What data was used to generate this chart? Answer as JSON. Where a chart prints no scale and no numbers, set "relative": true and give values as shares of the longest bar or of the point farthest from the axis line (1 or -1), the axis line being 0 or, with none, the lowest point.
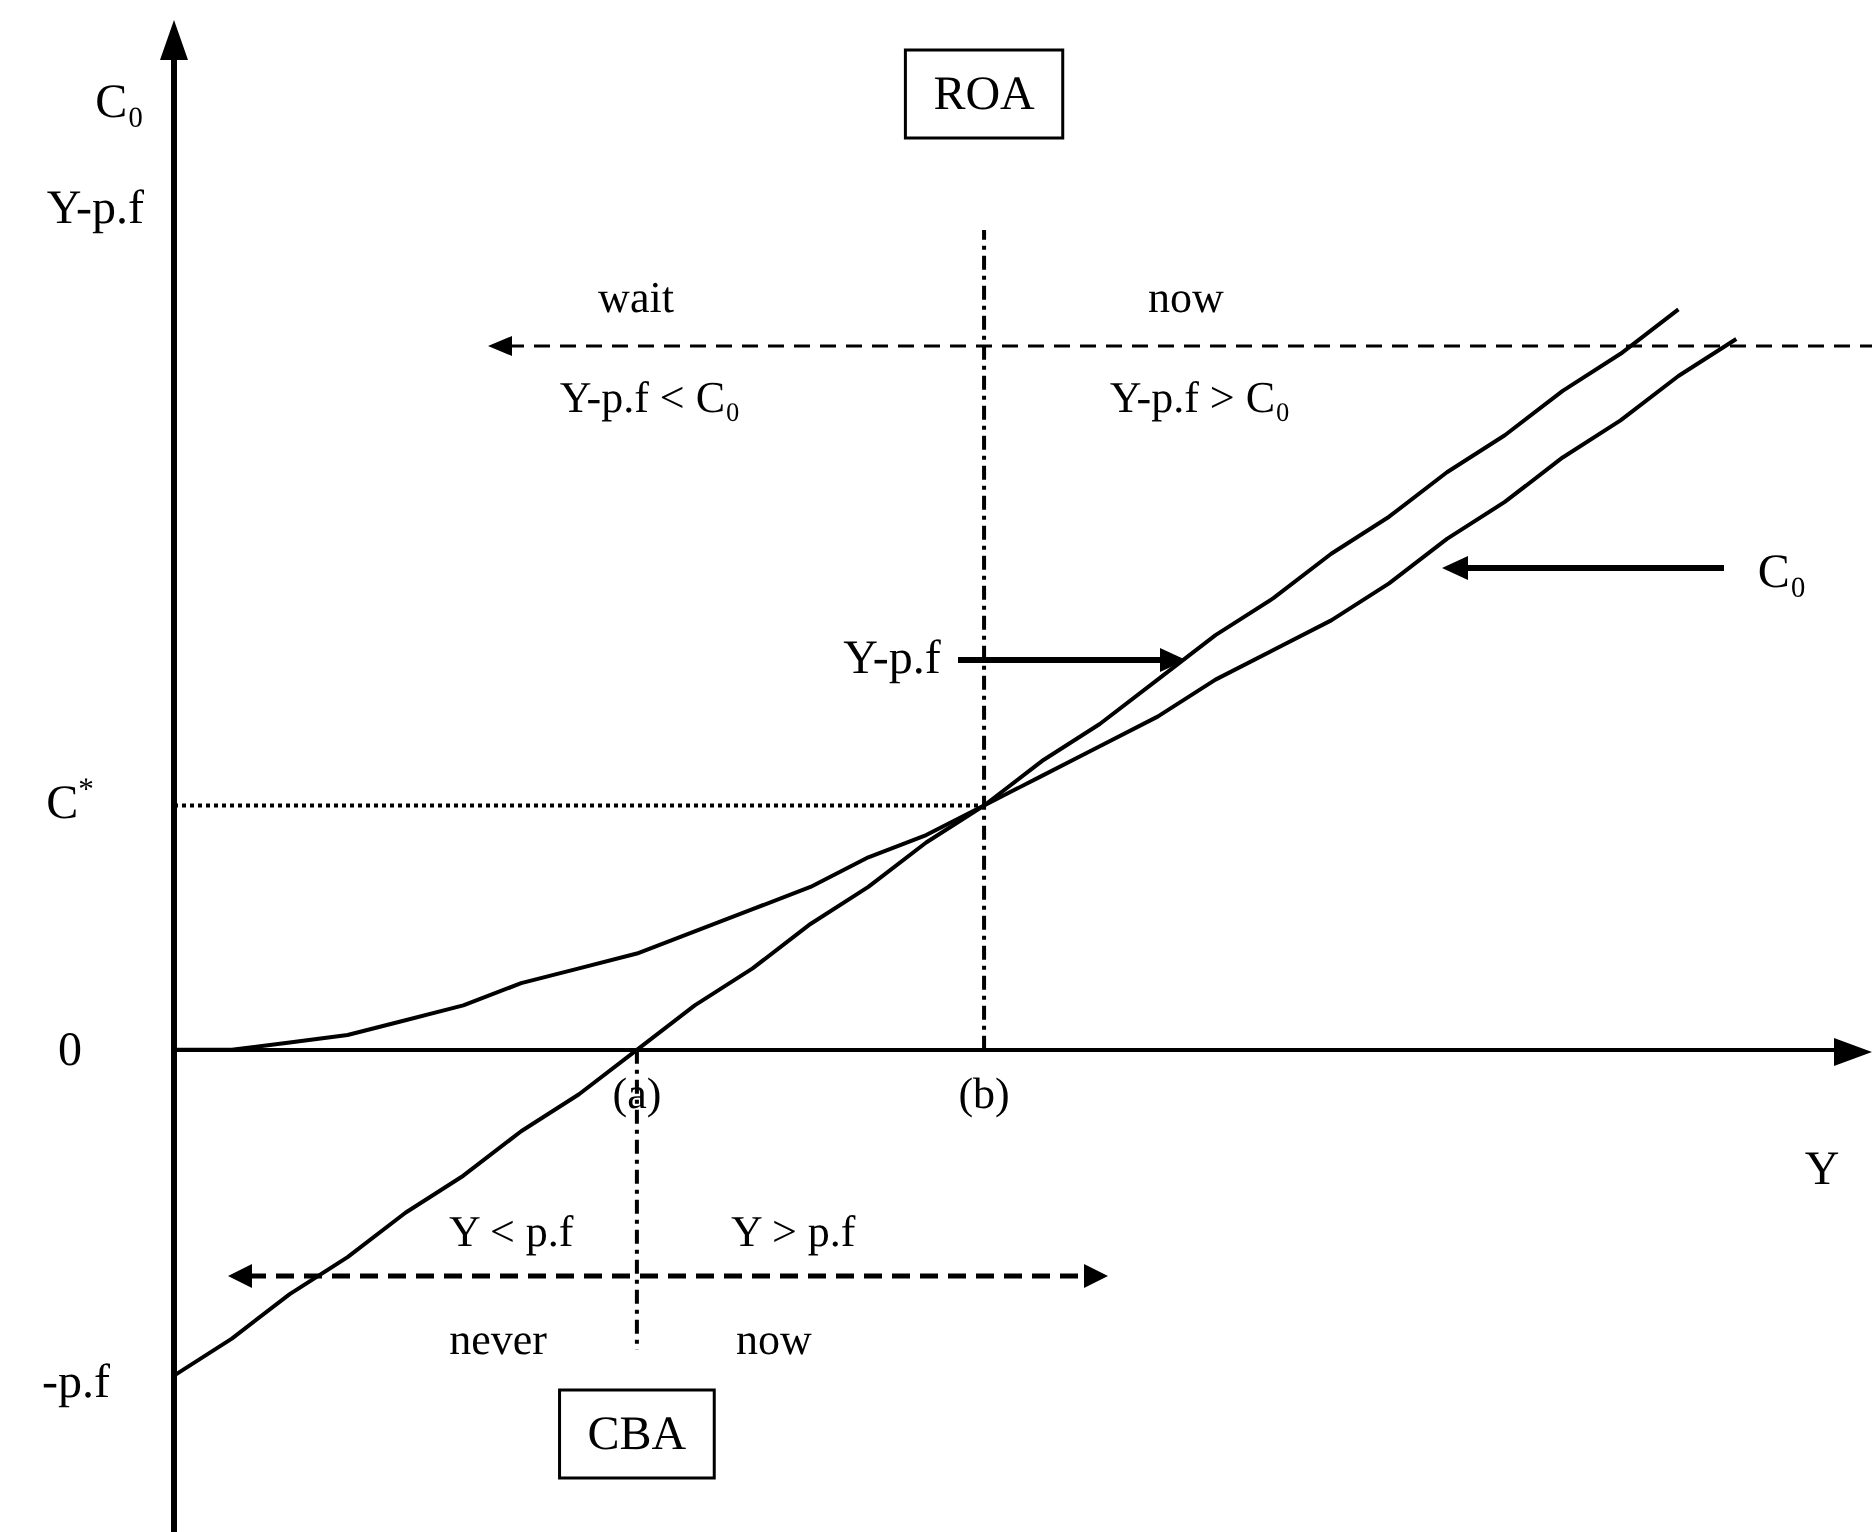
{
  "chart_data": {
    "type": "line",
    "relative": true,
    "ylabel": "C₀\nY-p.f",
    "xlabel": "Y",
    "categories": [
      null,
      null,
      null,
      null,
      null,
      null,
      null,
      null,
      "(a)",
      null,
      null,
      null,
      null,
      null,
      "(b)",
      null,
      null,
      null,
      null,
      null,
      null,
      null,
      null,
      null,
      null,
      null,
      null,
      null,
      null,
      null
    ],
    "series": [
      {
        "color": "#000000",
        "values": [
          -0.44,
          -0.39,
          -0.33,
          -0.28,
          -0.22,
          -0.17,
          -0.11,
          -0.06,
          0,
          0.06,
          0.11,
          0.17,
          0.22,
          0.28,
          0.33,
          0.39,
          0.44,
          0.5,
          0.56,
          0.61,
          0.67,
          0.72,
          0.78,
          0.83,
          0.89,
          0.94,
          1,
          null,
          null,
          null
        ]
      },
      {
        "color": "#000000",
        "values": [
          0,
          0,
          0.01,
          0.02,
          0.04,
          0.06,
          0.09,
          0.11,
          0.13,
          0.16,
          0.19,
          0.22,
          0.26,
          0.29,
          0.33,
          0.37,
          0.41,
          0.45,
          0.5,
          0.54,
          0.58,
          0.63,
          0.69,
          0.74,
          0.8,
          0.85,
          0.91,
          0.96,
          null,
          null
        ]
      }
    ],
    "ref_lines": [
      {
        "axis": "y",
        "value": 0.33,
        "label": "C$^{*}$",
        "color": "#000000",
        "line_style": "dotted"
      },
      {
        "axis": "x",
        "value": "(b)",
        "label": "ROA",
        "color": "#000000",
        "line_style": "dashed"
      },
      {
        "axis": "x",
        "value": "(a)",
        "label": "CBA",
        "color": "#000000",
        "line_style": "dashed"
      }
    ],
    "annotations": [
      "wait",
      "now",
      "Y-p.f < C₀",
      "Y-p.f > C₀",
      "Y < p.f",
      "Y > p.f",
      "never",
      "now",
      "0",
      "-p.f",
      "Y-p.f",
      "C₀"
    ],
    "grid": false,
    "legend": false,
    "marker": "none",
    "line_style": "solid",
    "tick_labels": "x"
  }
}
